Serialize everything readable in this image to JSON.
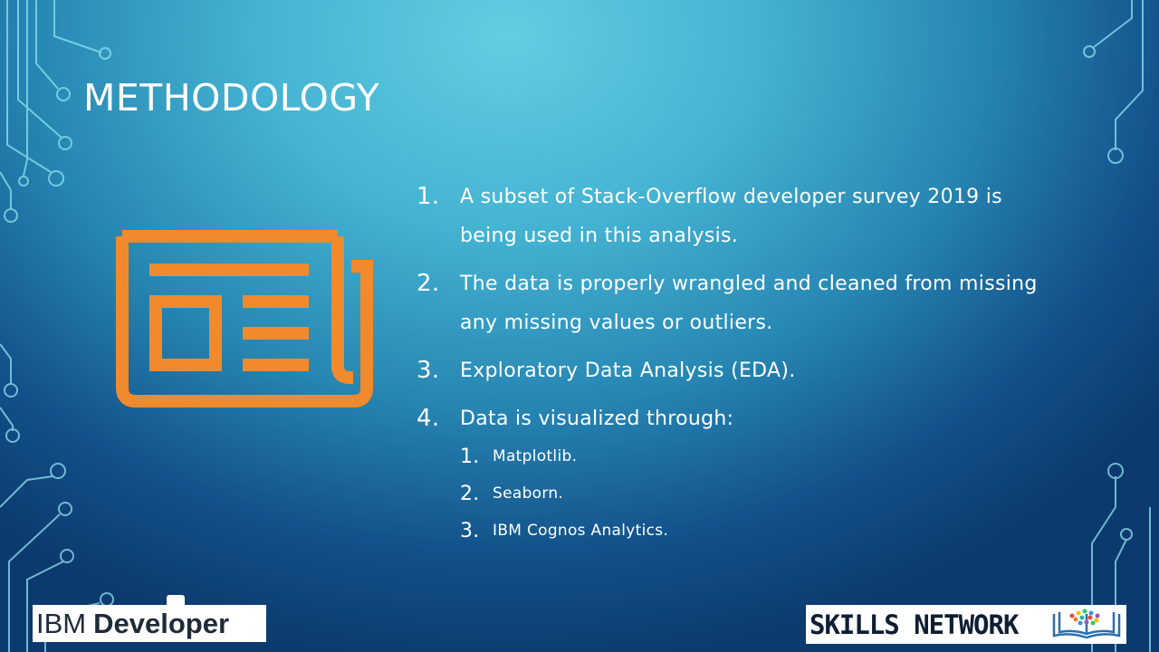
{
  "slide": {
    "title": "METHODOLOGY",
    "icon": "newspaper-icon",
    "icon_color": "#f08a2c",
    "items": [
      {
        "number": "1.",
        "text_line1": "A subset of Stack-Overflow developer survey 2019 is",
        "text_line2": "being used in this analysis."
      },
      {
        "number": "2.",
        "text_line1": "The data is properly wrangled and cleaned from missing",
        "text_line2": "any missing values or outliers."
      },
      {
        "number": "3.",
        "text_line1": "Exploratory Data Analysis (EDA)."
      },
      {
        "number": "4.",
        "text_line1": "Data is visualized through:",
        "subitems": [
          {
            "number": "1.",
            "text": "Matplotlib."
          },
          {
            "number": "2.",
            "text": "Seaborn."
          },
          {
            "number": "3.",
            "text": "IBM Cognos Analytics."
          }
        ]
      }
    ]
  },
  "footer": {
    "ibm_logo_brand": "IBM",
    "ibm_logo_product": "Developer",
    "skills_logo_text": "SKILLS NETWORK",
    "skills_logo_icon": "open-book-icon"
  },
  "colors": {
    "circuit": "#8fe3f0",
    "text": "#ffffff",
    "accent": "#f08a2c"
  }
}
